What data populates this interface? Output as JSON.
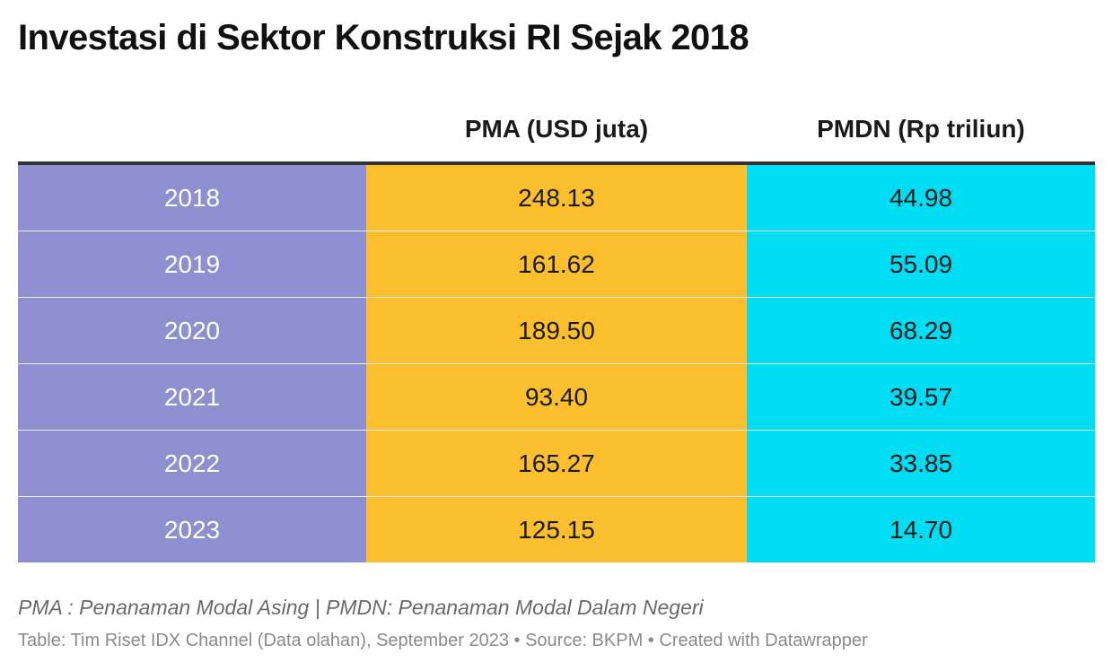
{
  "chart_data": {
    "type": "table",
    "title": "Investasi di Sektor Konstruksi RI Sejak 2018",
    "columns": [
      "",
      "PMA (USD juta)",
      "PMDN (Rp triliun)"
    ],
    "rows": [
      {
        "year": "2018",
        "pma": "248.13",
        "pmdn": "44.98"
      },
      {
        "year": "2019",
        "pma": "161.62",
        "pmdn": "55.09"
      },
      {
        "year": "2020",
        "pma": "189.50",
        "pmdn": "68.29"
      },
      {
        "year": "2021",
        "pma": "93.40",
        "pmdn": "39.57"
      },
      {
        "year": "2022",
        "pma": "165.27",
        "pmdn": "33.85"
      },
      {
        "year": "2023",
        "pma": "125.15",
        "pmdn": "14.70"
      }
    ],
    "colors": {
      "year": "#8d8fd1",
      "pma": "#fbbf2e",
      "pmdn": "#00dcf2"
    }
  },
  "notes": "PMA : Penanaman Modal Asing | PMDN: Penanaman Modal Dalam Negeri",
  "footer": "Table: Tim Riset IDX Channel (Data olahan), September 2023 • Source: BKPM • Created with Datawrapper"
}
